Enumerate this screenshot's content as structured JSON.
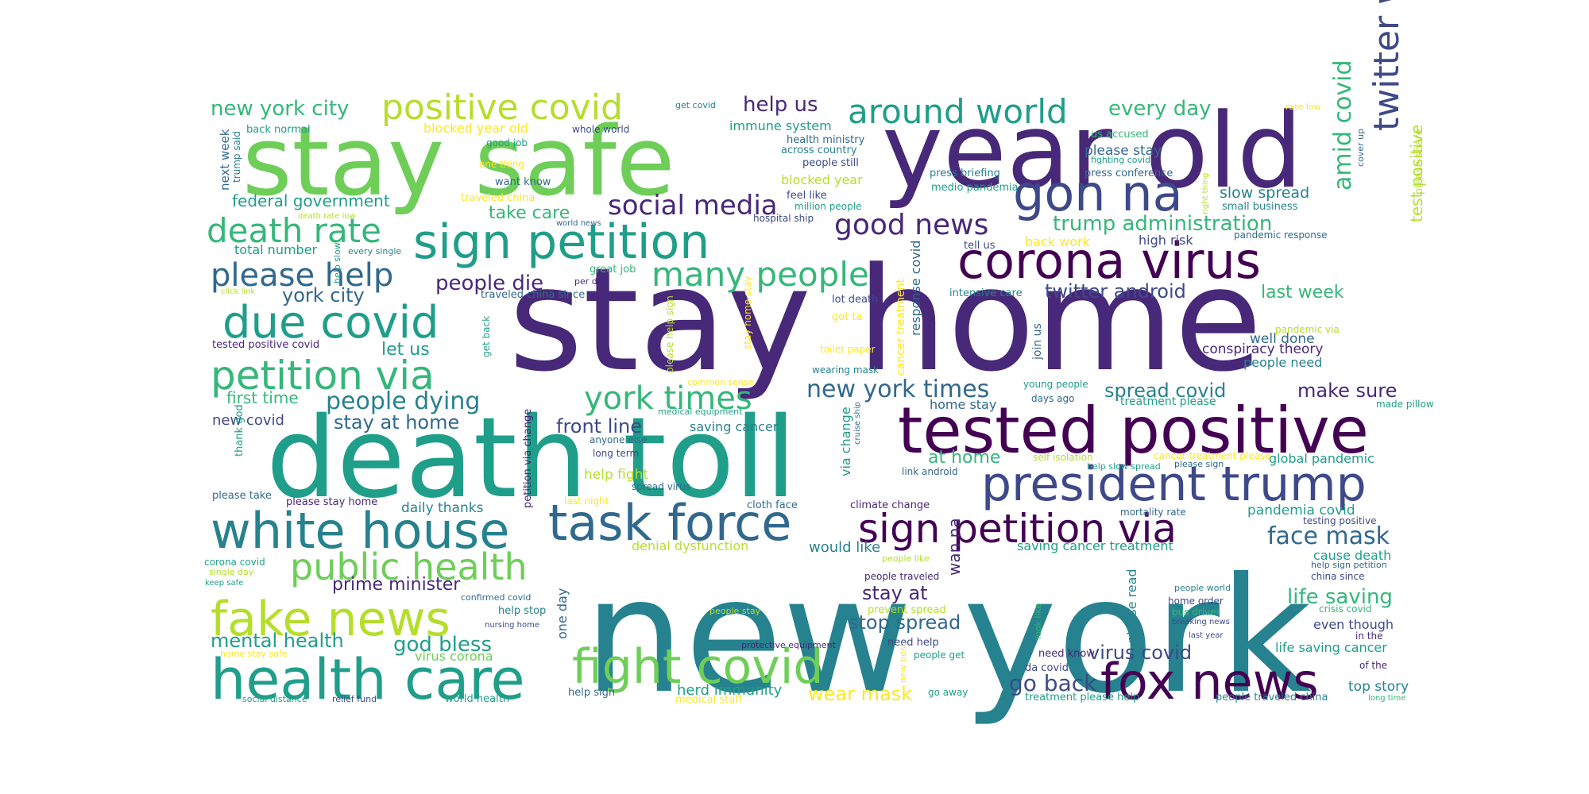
{
  "palette": {
    "dark_purple": "#440154",
    "purple": "#482878",
    "indigo": "#3e4989",
    "slate_blue": "#31688e",
    "teal": "#26828e",
    "green_teal": "#1f9e89",
    "green": "#35b779",
    "light_green": "#6ece58",
    "lime": "#b5de2b",
    "yellow": "#fde725"
  },
  "words": [
    {
      "text": "new york",
      "color": "teal"
    },
    {
      "text": "stay home",
      "color": "purple"
    },
    {
      "text": "death toll",
      "color": "green_teal"
    },
    {
      "text": "stay safe",
      "color": "light_green"
    },
    {
      "text": "year old",
      "color": "purple"
    },
    {
      "text": "tested positive",
      "color": "dark_purple"
    },
    {
      "text": "task force",
      "color": "slate_blue"
    },
    {
      "text": "president trump",
      "color": "indigo"
    },
    {
      "text": "corona virus",
      "color": "dark_purple"
    },
    {
      "text": "sign petition",
      "color": "green_teal"
    },
    {
      "text": "white house",
      "color": "teal"
    },
    {
      "text": "health care",
      "color": "green_teal"
    },
    {
      "text": "fight covid",
      "color": "light_green"
    },
    {
      "text": "fox news",
      "color": "dark_purple"
    },
    {
      "text": "fake news",
      "color": "lime"
    },
    {
      "text": "gon na",
      "color": "indigo"
    },
    {
      "text": "sign petition via",
      "color": "dark_purple"
    },
    {
      "text": "petition via",
      "color": "green"
    },
    {
      "text": "due covid",
      "color": "green_teal"
    },
    {
      "text": "public health",
      "color": "light_green"
    },
    {
      "text": "positive covid",
      "color": "lime"
    },
    {
      "text": "twitter web",
      "color": "indigo"
    },
    {
      "text": "many people",
      "color": "green"
    },
    {
      "text": "death rate",
      "color": "green"
    },
    {
      "text": "around world",
      "color": "green_teal"
    },
    {
      "text": "please help",
      "color": "slate_blue"
    },
    {
      "text": "york times",
      "color": "green"
    },
    {
      "text": "social media",
      "color": "purple"
    },
    {
      "text": "good news",
      "color": "purple"
    },
    {
      "text": "amid covid",
      "color": "green"
    },
    {
      "text": "face mask",
      "color": "slate_blue"
    },
    {
      "text": "new york times",
      "color": "slate_blue"
    },
    {
      "text": "people dying",
      "color": "teal"
    },
    {
      "text": "trump administration",
      "color": "green"
    },
    {
      "text": "new york city",
      "color": "green"
    },
    {
      "text": "every day",
      "color": "green"
    },
    {
      "text": "help us",
      "color": "purple"
    },
    {
      "text": "twitter android",
      "color": "indigo"
    },
    {
      "text": "people die",
      "color": "purple"
    },
    {
      "text": "go back",
      "color": "indigo"
    },
    {
      "text": "virus covid",
      "color": "indigo"
    },
    {
      "text": "mental health",
      "color": "green_teal"
    },
    {
      "text": "god bless",
      "color": "green_teal"
    },
    {
      "text": "stop spread",
      "color": "slate_blue"
    },
    {
      "text": "spread covid",
      "color": "teal"
    },
    {
      "text": "make sure",
      "color": "purple"
    },
    {
      "text": "front line",
      "color": "indigo"
    },
    {
      "text": "stay at home",
      "color": "slate_blue"
    },
    {
      "text": "take care",
      "color": "green"
    },
    {
      "text": "york city",
      "color": "slate_blue"
    },
    {
      "text": "last week",
      "color": "green"
    },
    {
      "text": "life saving",
      "color": "green"
    },
    {
      "text": "wear mask",
      "color": "yellow"
    },
    {
      "text": "stay at",
      "color": "purple"
    },
    {
      "text": "prime minister",
      "color": "purple"
    },
    {
      "text": "let us",
      "color": "green_teal"
    },
    {
      "text": "federal government",
      "color": "green_teal"
    },
    {
      "text": "first time",
      "color": "green"
    },
    {
      "text": "test positive",
      "color": "lime"
    },
    {
      "text": "slow spread",
      "color": "teal"
    },
    {
      "text": "at home",
      "color": "green"
    },
    {
      "text": "wan na",
      "color": "purple"
    },
    {
      "text": "conspiracy theory",
      "color": "purple"
    },
    {
      "text": "herd immunity",
      "color": "green_teal"
    },
    {
      "text": "top story",
      "color": "teal"
    },
    {
      "text": "would like",
      "color": "teal"
    },
    {
      "text": "total number",
      "color": "green_teal"
    },
    {
      "text": "new covid",
      "color": "indigo"
    },
    {
      "text": "help fight",
      "color": "lime"
    },
    {
      "text": "via change",
      "color": "green_teal"
    },
    {
      "text": "please stay",
      "color": "slate_blue"
    },
    {
      "text": "blocked year",
      "color": "lime"
    },
    {
      "text": "immune system",
      "color": "green_teal"
    },
    {
      "text": "saving cancer",
      "color": "teal"
    },
    {
      "text": "well done",
      "color": "slate_blue"
    },
    {
      "text": "high risk",
      "color": "indigo"
    },
    {
      "text": "back work",
      "color": "yellow"
    },
    {
      "text": "daily thanks",
      "color": "teal"
    },
    {
      "text": "pandemia covid",
      "color": "green_teal"
    },
    {
      "text": "home stay",
      "color": "slate_blue"
    },
    {
      "text": "global pandemic",
      "color": "green_teal"
    },
    {
      "text": "people need",
      "color": "teal"
    },
    {
      "text": "cause death",
      "color": "green_teal"
    },
    {
      "text": "denial dysfunction",
      "color": "lime"
    },
    {
      "text": "saving cancer treatment",
      "color": "green_teal"
    },
    {
      "text": "life saving cancer",
      "color": "green_teal"
    },
    {
      "text": "even though",
      "color": "indigo"
    },
    {
      "text": "blocked year old",
      "color": "yellow"
    },
    {
      "text": "response covid",
      "color": "slate_blue"
    },
    {
      "text": "one day",
      "color": "slate_blue"
    },
    {
      "text": "please read",
      "color": "teal"
    },
    {
      "text": "next week",
      "color": "slate_blue"
    },
    {
      "text": "help stop",
      "color": "teal"
    },
    {
      "text": "virus corona",
      "color": "light_green"
    },
    {
      "text": "cancer treatment",
      "color": "yellow"
    },
    {
      "text": "treatment please",
      "color": "green_teal"
    },
    {
      "text": "join us",
      "color": "slate_blue"
    },
    {
      "text": "need know",
      "color": "purple"
    },
    {
      "text": "da covid",
      "color": "indigo"
    },
    {
      "text": "people traveled china",
      "color": "teal"
    },
    {
      "text": "treatment please help",
      "color": "green_teal"
    },
    {
      "text": "social distance",
      "color": "green_teal"
    },
    {
      "text": "relief fund",
      "color": "indigo"
    },
    {
      "text": "world health",
      "color": "green_teal"
    },
    {
      "text": "help sign",
      "color": "slate_blue"
    },
    {
      "text": "medical staff",
      "color": "yellow"
    },
    {
      "text": "go away",
      "color": "green_teal"
    },
    {
      "text": "tested positive covid",
      "color": "purple"
    },
    {
      "text": "please take",
      "color": "slate_blue"
    },
    {
      "text": "please stay home",
      "color": "purple"
    },
    {
      "text": "thank god",
      "color": "green_teal"
    },
    {
      "text": "petition via change",
      "color": "purple"
    },
    {
      "text": "intensive care",
      "color": "teal"
    },
    {
      "text": "press conference",
      "color": "slate_blue"
    },
    {
      "text": "press briefing",
      "color": "teal"
    },
    {
      "text": "medio pandemia",
      "color": "green_teal"
    },
    {
      "text": "small business",
      "color": "teal"
    },
    {
      "text": "pandemic response",
      "color": "slate_blue"
    },
    {
      "text": "tell us",
      "color": "indigo"
    },
    {
      "text": "people still",
      "color": "indigo"
    },
    {
      "text": "health ministry",
      "color": "slate_blue"
    },
    {
      "text": "across country",
      "color": "teal"
    },
    {
      "text": "feel like",
      "color": "indigo"
    },
    {
      "text": "million people",
      "color": "green_teal"
    },
    {
      "text": "hospital ship",
      "color": "indigo"
    },
    {
      "text": "want know",
      "color": "slate_blue"
    },
    {
      "text": "good job",
      "color": "green_teal"
    },
    {
      "text": "one thing",
      "color": "yellow"
    },
    {
      "text": "traveled china",
      "color": "yellow"
    },
    {
      "text": "death rate low",
      "color": "lime"
    },
    {
      "text": "world news",
      "color": "slate_blue"
    },
    {
      "text": "every single",
      "color": "teal"
    },
    {
      "text": "back normal",
      "color": "green_teal"
    },
    {
      "text": "trump said",
      "color": "teal"
    },
    {
      "text": "whole world",
      "color": "indigo"
    },
    {
      "text": "get covid",
      "color": "teal"
    },
    {
      "text": "us accused",
      "color": "green"
    },
    {
      "text": "fighting covid",
      "color": "green_teal"
    },
    {
      "text": "rate low",
      "color": "yellow"
    },
    {
      "text": "cover up",
      "color": "slate_blue"
    },
    {
      "text": "please share",
      "color": "lime"
    },
    {
      "text": "right thing",
      "color": "lime"
    },
    {
      "text": "great job",
      "color": "green"
    },
    {
      "text": "per day",
      "color": "purple"
    },
    {
      "text": "traveled china since",
      "color": "slate_blue"
    },
    {
      "text": "get back",
      "color": "green_teal"
    },
    {
      "text": "help slow",
      "color": "green_teal"
    },
    {
      "text": "click link",
      "color": "lime"
    },
    {
      "text": "please help sign",
      "color": "lime"
    },
    {
      "text": "stay home stay",
      "color": "yellow"
    },
    {
      "text": "got ta",
      "color": "yellow"
    },
    {
      "text": "lot death",
      "color": "indigo"
    },
    {
      "text": "toilet paper",
      "color": "yellow"
    },
    {
      "text": "wearing mask",
      "color": "teal"
    },
    {
      "text": "young people",
      "color": "green_teal"
    },
    {
      "text": "days ago",
      "color": "slate_blue"
    },
    {
      "text": "made pillow",
      "color": "green_teal"
    },
    {
      "text": "pandemic via",
      "color": "lime"
    },
    {
      "text": "common sense",
      "color": "yellow"
    },
    {
      "text": "medical equipment",
      "color": "green_teal"
    },
    {
      "text": "anyone else",
      "color": "slate_blue"
    },
    {
      "text": "long term",
      "color": "indigo"
    },
    {
      "text": "cruise ship",
      "color": "slate_blue"
    },
    {
      "text": "link android",
      "color": "slate_blue"
    },
    {
      "text": "self isolation",
      "color": "lime"
    },
    {
      "text": "cancer treatment please",
      "color": "yellow"
    },
    {
      "text": "please sign",
      "color": "slate_blue"
    },
    {
      "text": "help slow spread",
      "color": "green_teal"
    },
    {
      "text": "spread virus",
      "color": "slate_blue"
    },
    {
      "text": "last night",
      "color": "yellow"
    },
    {
      "text": "cloth face",
      "color": "slate_blue"
    },
    {
      "text": "climate change",
      "color": "purple"
    },
    {
      "text": "mortality rate",
      "color": "slate_blue"
    },
    {
      "text": "testing positive",
      "color": "indigo"
    },
    {
      "text": "corona covid",
      "color": "green_teal"
    },
    {
      "text": "single day",
      "color": "lime"
    },
    {
      "text": "keep safe",
      "color": "green_teal"
    },
    {
      "text": "confirmed covid",
      "color": "slate_blue"
    },
    {
      "text": "nursing home",
      "color": "indigo"
    },
    {
      "text": "people stay",
      "color": "lime"
    },
    {
      "text": "people like",
      "color": "lime"
    },
    {
      "text": "people traveled",
      "color": "purple"
    },
    {
      "text": "prevent spread",
      "color": "lime"
    },
    {
      "text": "protective equipment",
      "color": "purple"
    },
    {
      "text": "need help",
      "color": "indigo"
    },
    {
      "text": "people get",
      "color": "green_teal"
    },
    {
      "text": "new post",
      "color": "yellow"
    },
    {
      "text": "look like",
      "color": "green"
    },
    {
      "text": "home order",
      "color": "indigo"
    },
    {
      "text": "bus driver",
      "color": "green"
    },
    {
      "text": "breaking news",
      "color": "indigo"
    },
    {
      "text": "last year",
      "color": "indigo"
    },
    {
      "text": "help sign petition",
      "color": "slate_blue"
    },
    {
      "text": "china since",
      "color": "indigo"
    },
    {
      "text": "people world",
      "color": "teal"
    },
    {
      "text": "crisis covid",
      "color": "green"
    },
    {
      "text": "in the",
      "color": "purple"
    },
    {
      "text": "of the",
      "color": "purple"
    },
    {
      "text": "long time",
      "color": "green"
    },
    {
      "text": "home stay safe",
      "color": "yellow"
    }
  ]
}
